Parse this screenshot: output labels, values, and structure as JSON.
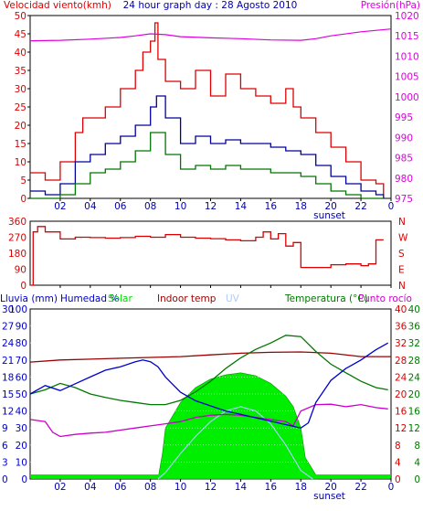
{
  "colors": {
    "wind_avg": "#000099",
    "wind_gust": "#dd0000",
    "wind_low": "#007700",
    "pressure": "#dd00dd",
    "direction": "#dd0000",
    "humidity": "#0000cc",
    "solar": "#00ee00",
    "indoor_temp": "#990000",
    "uv": "#aaccff",
    "temperature": "#007700",
    "dewpoint": "#cc00cc",
    "rain": "#0000cc"
  },
  "header": {
    "wind_title": "Velocidad viento(kmh)",
    "graph_title": "24 hour graph day : 28 Agosto 2010",
    "pressure_title": "Presión(hPa)"
  },
  "bottom_header": {
    "rain": "Lluvia (mm)",
    "humidity": "Humedad %",
    "solar": "Solar",
    "indoor": "Indoor temp",
    "uv": "UV",
    "temperature": "Temperatura (°C)",
    "dewpoint": "Punto rocío"
  },
  "x_ticks": [
    "02",
    "04",
    "06",
    "08",
    "10",
    "12",
    "14",
    "16",
    "18",
    "20",
    "22",
    "0"
  ],
  "sunset_label": "sunset",
  "chart_data": [
    {
      "type": "line",
      "panel": "wind-pressure",
      "x_range": [
        0,
        24
      ],
      "ylim_left": [
        0,
        50
      ],
      "left_ticks": [
        0,
        5,
        10,
        15,
        20,
        25,
        30,
        35,
        40,
        45,
        50
      ],
      "ylim_right": [
        975,
        1020
      ],
      "right_ticks": [
        975,
        980,
        985,
        990,
        995,
        1000,
        1005,
        1010,
        1015,
        1020
      ],
      "series": [
        {
          "key": "gust",
          "x": [
            0,
            1,
            2,
            3,
            3.5,
            4,
            5,
            6,
            7,
            7.5,
            8,
            8.3,
            8.5,
            9,
            10,
            11,
            12,
            13,
            14,
            15,
            16,
            17,
            17.5,
            18,
            19,
            20,
            21,
            22,
            23,
            23.5
          ],
          "values": [
            7,
            5,
            10,
            18,
            22,
            22,
            25,
            30,
            35,
            40,
            43,
            48,
            38,
            32,
            30,
            35,
            28,
            34,
            30,
            28,
            26,
            30,
            25,
            22,
            18,
            14,
            10,
            5,
            4,
            1
          ]
        },
        {
          "key": "average",
          "x": [
            0,
            1,
            2,
            3,
            4,
            5,
            6,
            7,
            8,
            8.4,
            9,
            10,
            11,
            12,
            13,
            14,
            15,
            16,
            17,
            18,
            19,
            20,
            21,
            22,
            23,
            23.5
          ],
          "values": [
            2,
            1,
            4,
            10,
            12,
            15,
            17,
            20,
            25,
            28,
            22,
            15,
            17,
            15,
            16,
            15,
            15,
            14,
            13,
            12,
            9,
            6,
            4,
            2,
            1,
            0
          ]
        },
        {
          "key": "low",
          "x": [
            0,
            1,
            2,
            3,
            4,
            5,
            6,
            7,
            8,
            9,
            10,
            11,
            12,
            13,
            14,
            15,
            16,
            17,
            18,
            19,
            20,
            21,
            22,
            23,
            23.5
          ],
          "values": [
            0,
            0,
            1,
            4,
            7,
            8,
            10,
            13,
            18,
            12,
            8,
            9,
            8,
            9,
            8,
            8,
            7,
            7,
            6,
            4,
            2,
            1,
            0,
            0,
            0
          ]
        },
        {
          "key": "pressure",
          "x": [
            0,
            2,
            4,
            6,
            7,
            8,
            9,
            10,
            12,
            14,
            16,
            18,
            19,
            20,
            22,
            24
          ],
          "values": [
            1013.8,
            1013.9,
            1014.2,
            1014.6,
            1015.0,
            1015.5,
            1015.3,
            1014.8,
            1014.5,
            1014.3,
            1014.0,
            1013.9,
            1014.3,
            1015.0,
            1016.0,
            1016.7
          ]
        }
      ]
    },
    {
      "type": "line",
      "panel": "wind-direction",
      "x_range": [
        0,
        24
      ],
      "ylim": [
        0,
        360
      ],
      "left_ticks": [
        0,
        90,
        180,
        270,
        360
      ],
      "right_labels": [
        "N",
        "W",
        "S",
        "E",
        "N"
      ],
      "series": [
        {
          "key": "direction",
          "x": [
            0,
            0.2,
            0.5,
            1,
            2,
            3,
            4,
            5,
            6,
            7,
            8,
            9,
            10,
            11,
            12,
            13,
            14,
            15,
            15.5,
            16,
            16.5,
            17,
            17.5,
            18,
            19,
            20,
            21,
            22,
            22.5,
            23,
            23.5
          ],
          "values": [
            0,
            300,
            330,
            300,
            260,
            270,
            268,
            265,
            268,
            275,
            270,
            285,
            270,
            265,
            262,
            255,
            250,
            270,
            300,
            260,
            290,
            220,
            240,
            100,
            100,
            115,
            120,
            110,
            120,
            255,
            255
          ]
        }
      ]
    },
    {
      "type": "area",
      "panel": "climate",
      "x_range": [
        0,
        24
      ],
      "axis_rain_ticks": [
        0,
        3,
        6,
        9,
        12,
        15,
        18,
        21,
        24,
        27,
        30
      ],
      "axis_humidity_ticks": [
        0,
        10,
        20,
        30,
        40,
        50,
        60,
        70,
        80,
        90,
        100
      ],
      "axis_temp_left_ticks": [
        0,
        4,
        8,
        12,
        16,
        20,
        24,
        28,
        32,
        36,
        40
      ],
      "axis_temp_right_ticks": [
        0,
        4,
        8,
        12,
        16,
        20,
        24,
        28,
        32,
        36,
        40
      ],
      "series": [
        {
          "key": "humidity",
          "ylim": [
            0,
            100
          ],
          "x": [
            0,
            1,
            2,
            3,
            4,
            5,
            6,
            7,
            7.5,
            8,
            8.5,
            9,
            10,
            11,
            12,
            13,
            14,
            15,
            16,
            17,
            18,
            18.5,
            19,
            20,
            21,
            22,
            23,
            23.8
          ],
          "values": [
            50,
            55,
            52,
            56,
            60,
            64,
            66,
            69,
            70,
            69,
            66,
            60,
            51,
            46,
            43,
            40,
            38,
            36,
            34,
            32,
            30,
            33,
            45,
            58,
            65,
            70,
            76,
            80
          ]
        },
        {
          "key": "indoor",
          "ylim": [
            0,
            40
          ],
          "x": [
            0,
            2,
            4,
            6,
            8,
            10,
            12,
            14,
            16,
            18,
            20,
            22,
            24
          ],
          "values": [
            27.5,
            28,
            28.2,
            28.4,
            28.6,
            28.8,
            29.2,
            29.6,
            29.8,
            29.9,
            29.6,
            28.8,
            28.8
          ]
        },
        {
          "key": "temperature",
          "ylim": [
            0,
            40
          ],
          "x": [
            0,
            1,
            2,
            3,
            4,
            5,
            6,
            7,
            8,
            9,
            10,
            11,
            12,
            13,
            14,
            15,
            16,
            17,
            18,
            19,
            20,
            21,
            22,
            23,
            23.8
          ],
          "values": [
            20,
            21,
            22.5,
            21.5,
            20,
            19.2,
            18.5,
            18,
            17.5,
            17.5,
            18.5,
            20.5,
            23,
            26,
            28.5,
            30.5,
            32,
            33.8,
            33.5,
            30,
            27,
            25,
            23,
            21.5,
            21
          ]
        },
        {
          "key": "dewpoint",
          "ylim": [
            0,
            40
          ],
          "x": [
            0,
            1,
            1.5,
            2,
            3,
            4,
            5,
            6,
            7,
            8,
            9,
            10,
            11,
            12,
            13,
            14,
            15,
            16,
            17,
            17.5,
            18,
            19,
            20,
            21,
            22,
            23,
            23.8
          ],
          "values": [
            14,
            13.5,
            11,
            10,
            10.5,
            10.8,
            11,
            11.5,
            12,
            12.5,
            13,
            13.5,
            14.5,
            15,
            15.2,
            15,
            14.5,
            14,
            13.5,
            12.5,
            16,
            17.5,
            17.6,
            17,
            17.5,
            16.8,
            16.5
          ]
        },
        {
          "key": "solar_area",
          "ylim": [
            0,
            40
          ],
          "x": [
            8.5,
            8.8,
            9,
            10,
            11,
            12,
            13,
            14,
            15,
            16,
            17,
            17.5,
            18,
            18.3,
            19,
            19.2
          ],
          "values": [
            0,
            6,
            12,
            18,
            21.5,
            23.5,
            24.5,
            25,
            24.3,
            22.5,
            19.5,
            17,
            12,
            5,
            1,
            0
          ]
        },
        {
          "key": "uv",
          "ylim": [
            0,
            40
          ],
          "x": [
            8.5,
            9,
            10,
            11,
            12,
            13,
            14,
            15,
            16,
            17,
            18,
            18.8
          ],
          "values": [
            0,
            1.5,
            6,
            10,
            13.5,
            16,
            17,
            16,
            13,
            8,
            2,
            0
          ]
        }
      ]
    }
  ]
}
